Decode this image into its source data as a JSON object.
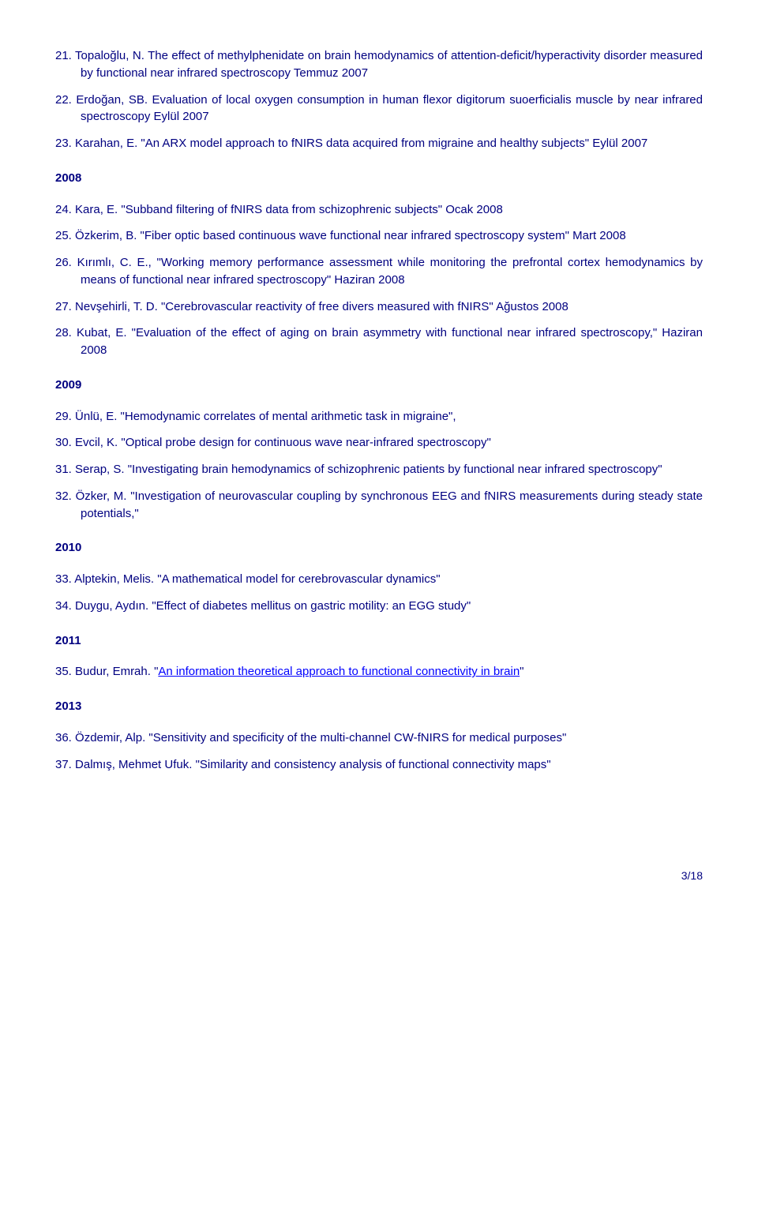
{
  "items_a": [
    {
      "n": "21.",
      "text": "Topaloğlu, N. The effect of methylphenidate on brain hemodynamics of attention-deficit/hyperactivity disorder measured by functional near infrared spectroscopy Temmuz 2007"
    },
    {
      "n": "22.",
      "text": "Erdoğan, SB. Evaluation of local oxygen consumption in human flexor digitorum suoerficialis muscle by near infrared spectroscopy Eylül 2007"
    },
    {
      "n": "23.",
      "text": "Karahan, E. \"An ARX model approach to fNIRS data acquired from migraine and healthy subjects\" Eylül 2007"
    }
  ],
  "year_2008": "2008",
  "items_2008": [
    {
      "n": "24.",
      "text": "Kara, E. \"Subband filtering of fNIRS data from schizophrenic subjects\" Ocak 2008"
    },
    {
      "n": "25.",
      "text": "Özkerim, B. \"Fiber optic based continuous wave functional near infrared spectroscopy system\" Mart 2008"
    },
    {
      "n": "26.",
      "text": "Kırımlı, C. E., \"Working memory performance assessment while monitoring the prefrontal cortex hemodynamics by means of functional near infrared spectroscopy\" Haziran 2008"
    },
    {
      "n": "27.",
      "text": "Nevşehirli, T. D. \"Cerebrovascular reactivity of free divers measured with fNIRS\" Ağustos 2008"
    },
    {
      "n": "28.",
      "text": "Kubat, E. \"Evaluation of the effect of aging on brain asymmetry with functional near infrared spectroscopy,\" Haziran 2008"
    }
  ],
  "year_2009": "2009",
  "items_2009": [
    {
      "n": "29.",
      "text": "Ünlü, E. \"Hemodynamic correlates of mental arithmetic task in migraine\","
    },
    {
      "n": "30.",
      "text": "Evcil, K. \"Optical probe design for continuous wave near-infrared spectroscopy\""
    },
    {
      "n": "31.",
      "text": "Serap, S. \"Investigating brain hemodynamics of schizophrenic patients by functional near infrared spectroscopy\""
    },
    {
      "n": "32.",
      "text": "Özker, M. \"Investigation of neurovascular coupling by synchronous EEG and fNIRS measurements during steady state potentials,\""
    }
  ],
  "year_2010": "2010",
  "items_2010": [
    {
      "n": "33.",
      "text": "Alptekin, Melis. \"A mathematical model for cerebrovascular dynamics\""
    },
    {
      "n": "34.",
      "text": "Duygu, Aydın. \"Effect of diabetes mellitus on gastric motility: an EGG study\""
    }
  ],
  "year_2011": "2011",
  "items_2011_prefix": "Budur, Emrah. \"",
  "items_2011_link": "An information theoretical approach to functional connectivity in brain",
  "items_2011_suffix": "\"",
  "items_2011_n": "35.",
  "year_2013": "2013",
  "items_2013": [
    {
      "n": "36.",
      "text": "Özdemir, Alp. \"Sensitivity and specificity of the multi-channel CW-fNIRS for medical purposes\""
    },
    {
      "n": "37.",
      "text": "Dalmış, Mehmet Ufuk. \"Similarity and consistency analysis of functional connectivity maps\""
    }
  ],
  "page_number": "3/18"
}
